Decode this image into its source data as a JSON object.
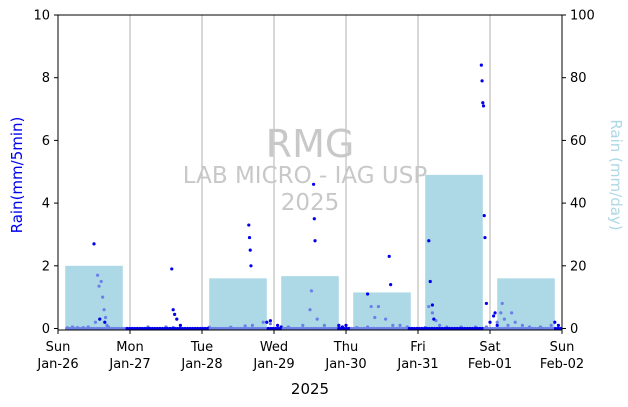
{
  "chart_data": {
    "type": "bar+scatter",
    "xlabel": "2025",
    "ylabel_left": "Rain(mm/5min)",
    "ylabel_right": "Rain (mm/day)",
    "ylim_left": [
      0,
      10
    ],
    "ylim_right": [
      0,
      100
    ],
    "yticks_left": [
      "0",
      "2",
      "4",
      "6",
      "8",
      "10"
    ],
    "yticks_right": [
      "0",
      "20",
      "40",
      "60",
      "80",
      "100"
    ],
    "x_range_days": [
      0,
      7
    ],
    "xticks": [
      {
        "day": "Sun",
        "date": "Jan-26"
      },
      {
        "day": "Mon",
        "date": "Jan-27"
      },
      {
        "day": "Tue",
        "date": "Jan-28"
      },
      {
        "day": "Wed",
        "date": "Jan-29"
      },
      {
        "day": "Thu",
        "date": "Jan-30"
      },
      {
        "day": "Fri",
        "date": "Jan-31"
      },
      {
        "day": "Sat",
        "date": "Feb-01"
      },
      {
        "day": "Sun",
        "date": "Feb-02"
      }
    ],
    "watermark": {
      "title": "RMG",
      "line1": "LAB MICRO - IAG USP",
      "line2": "2025"
    },
    "colors": {
      "daily_bar": "#add8e6",
      "dark_points": "#0000ee",
      "light_points": "#6a7fe8",
      "grid": "#b0b0b0"
    },
    "daily_totals": [
      {
        "date": "Jan-26",
        "value": 20
      },
      {
        "date": "Jan-27",
        "value": 0
      },
      {
        "date": "Jan-28",
        "value": 16
      },
      {
        "date": "Jan-29",
        "value": 16.7
      },
      {
        "date": "Jan-30",
        "value": 11.5
      },
      {
        "date": "Jan-31",
        "value": 49
      },
      {
        "date": "Feb-01",
        "value": 16
      }
    ],
    "series_light": [
      [
        0.13,
        0.02
      ],
      [
        0.2,
        0.05
      ],
      [
        0.27,
        0.03
      ],
      [
        0.35,
        0.03
      ],
      [
        0.42,
        0.05
      ],
      [
        0.52,
        0.2
      ],
      [
        0.55,
        1.7
      ],
      [
        0.57,
        1.35
      ],
      [
        0.6,
        1.5
      ],
      [
        0.62,
        1.0
      ],
      [
        0.64,
        0.6
      ],
      [
        0.66,
        0.35
      ],
      [
        0.68,
        0.1
      ],
      [
        0.7,
        0.05
      ],
      [
        1.25,
        0.05
      ],
      [
        1.5,
        0.05
      ],
      [
        1.6,
        0.03
      ],
      [
        2.1,
        0.04
      ],
      [
        2.4,
        0.04
      ],
      [
        2.6,
        0.08
      ],
      [
        2.7,
        0.1
      ],
      [
        2.85,
        0.2
      ],
      [
        2.95,
        0.15
      ],
      [
        3.2,
        0.05
      ],
      [
        3.4,
        0.1
      ],
      [
        3.5,
        0.6
      ],
      [
        3.52,
        1.2
      ],
      [
        3.6,
        0.3
      ],
      [
        3.7,
        0.1
      ],
      [
        3.9,
        0.05
      ],
      [
        4.15,
        0.03
      ],
      [
        4.3,
        0.05
      ],
      [
        4.35,
        0.7
      ],
      [
        4.4,
        0.35
      ],
      [
        4.45,
        0.7
      ],
      [
        4.55,
        0.3
      ],
      [
        4.65,
        0.1
      ],
      [
        4.75,
        0.1
      ],
      [
        4.85,
        0.05
      ],
      [
        5.1,
        0.03
      ],
      [
        5.15,
        0.7
      ],
      [
        5.2,
        0.5
      ],
      [
        5.25,
        0.25
      ],
      [
        5.3,
        0.1
      ],
      [
        5.4,
        0.05
      ],
      [
        5.6,
        0.05
      ],
      [
        5.8,
        0.05
      ],
      [
        5.95,
        0.05
      ],
      [
        6.1,
        0.2
      ],
      [
        6.15,
        0.5
      ],
      [
        6.17,
        0.8
      ],
      [
        6.2,
        0.3
      ],
      [
        6.25,
        0.1
      ],
      [
        6.3,
        0.5
      ],
      [
        6.35,
        0.2
      ],
      [
        6.45,
        0.1
      ],
      [
        6.55,
        0.05
      ],
      [
        6.7,
        0.05
      ],
      [
        6.85,
        0.1
      ]
    ],
    "series_dark": [
      [
        0.5,
        2.7
      ],
      [
        0.58,
        0.3
      ],
      [
        0.65,
        0.2
      ],
      [
        1.58,
        1.9
      ],
      [
        1.6,
        0.6
      ],
      [
        1.62,
        0.45
      ],
      [
        1.65,
        0.3
      ],
      [
        1.7,
        0.1
      ],
      [
        2.65,
        3.3
      ],
      [
        2.66,
        2.9
      ],
      [
        2.67,
        2.5
      ],
      [
        2.68,
        2.0
      ],
      [
        2.9,
        0.2
      ],
      [
        2.95,
        0.25
      ],
      [
        3.05,
        0.1
      ],
      [
        3.1,
        0.05
      ],
      [
        3.55,
        4.6
      ],
      [
        3.56,
        3.5
      ],
      [
        3.57,
        2.8
      ],
      [
        3.9,
        0.1
      ],
      [
        3.95,
        0.05
      ],
      [
        4.0,
        0.1
      ],
      [
        4.3,
        1.1
      ],
      [
        4.6,
        2.3
      ],
      [
        4.62,
        1.4
      ],
      [
        5.15,
        2.8
      ],
      [
        5.17,
        1.5
      ],
      [
        5.2,
        0.75
      ],
      [
        5.22,
        0.3
      ],
      [
        5.88,
        8.4
      ],
      [
        5.89,
        7.9
      ],
      [
        5.9,
        7.2
      ],
      [
        5.91,
        7.1
      ],
      [
        5.92,
        3.6
      ],
      [
        5.93,
        2.9
      ],
      [
        5.95,
        0.8
      ],
      [
        6.0,
        0.2
      ],
      [
        6.05,
        0.4
      ],
      [
        6.07,
        0.5
      ],
      [
        6.1,
        0.1
      ],
      [
        6.9,
        0.2
      ],
      [
        6.95,
        0.1
      ]
    ]
  }
}
